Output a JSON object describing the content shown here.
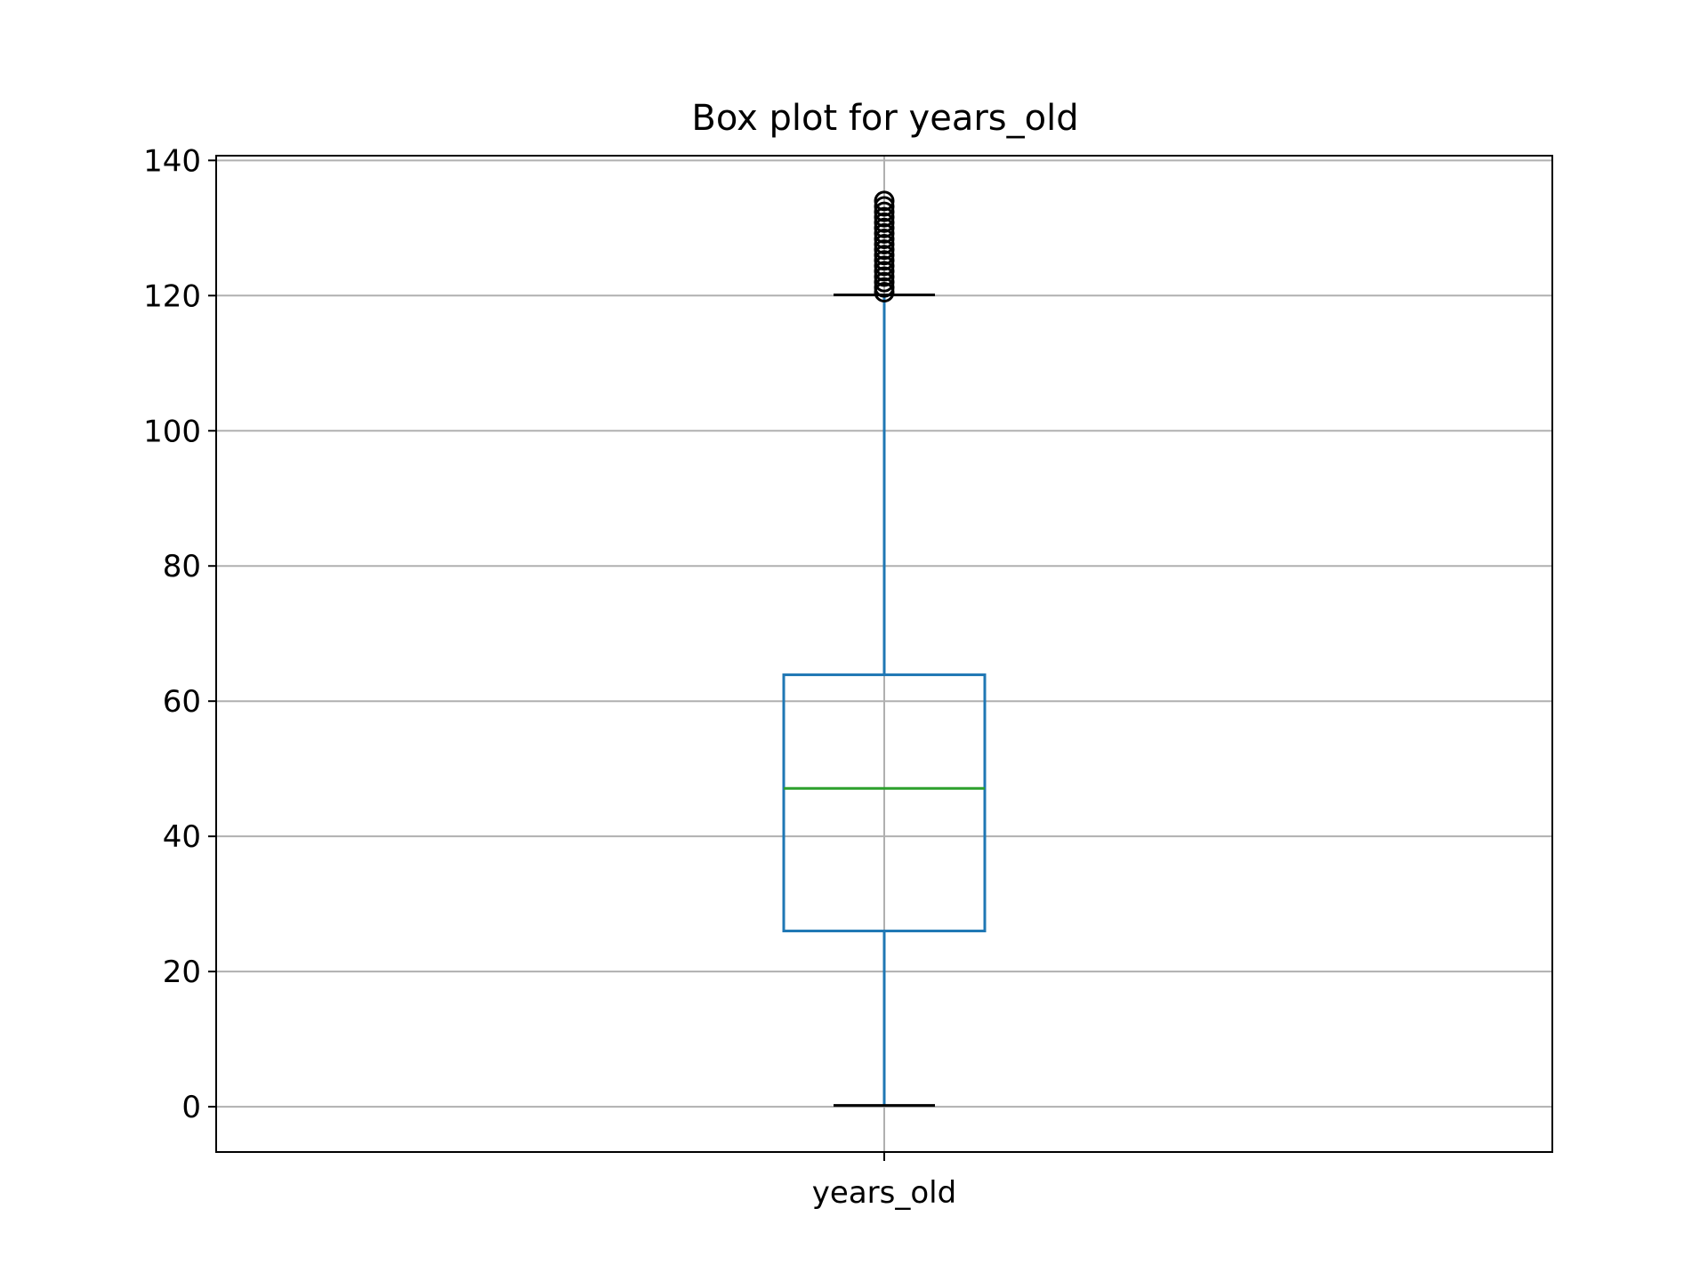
{
  "chart_data": {
    "type": "box",
    "title": "Box plot for years_old",
    "xlabel": "",
    "ylabel": "",
    "categories": [
      "years_old"
    ],
    "ylim": [
      -6.7,
      140.7
    ],
    "yticks": [
      0,
      20,
      40,
      60,
      80,
      100,
      120,
      140
    ],
    "grid": true,
    "legend": "none",
    "boxes": [
      {
        "category": "years_old",
        "whisker_low": 0.2,
        "q1": 26,
        "median": 47.1,
        "q3": 63.9,
        "whisker_high": 120.1,
        "outliers": [
          120.5,
          121.2,
          122,
          122.8,
          123.6,
          124.4,
          125.2,
          126,
          126.8,
          127.6,
          128.4,
          129.2,
          130,
          130.8,
          131.6,
          132.4,
          133.2,
          134
        ]
      }
    ],
    "colors": {
      "box": "#1f77b4",
      "whisker": "#1f77b4",
      "cap": "#000000",
      "median": "#2ca02c",
      "grid": "#b0b0b0",
      "axes": "#000000"
    }
  }
}
